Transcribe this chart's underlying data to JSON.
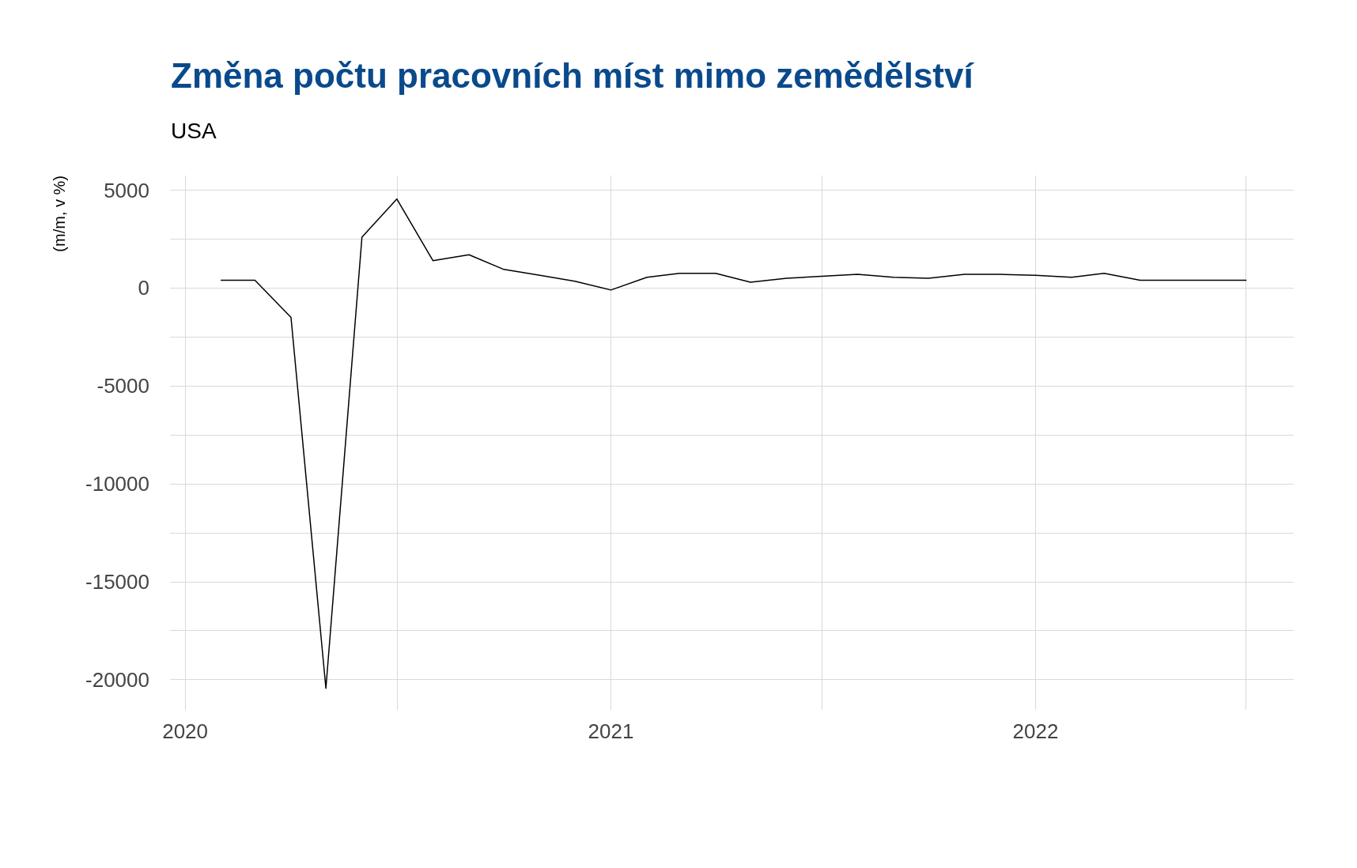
{
  "chart_data": {
    "type": "line",
    "title": "Změna počtu pracovních míst mimo zemědělství",
    "subtitle": "USA",
    "ylabel": "(m/m, v %)",
    "x": [
      "2020-02",
      "2020-03",
      "2020-04",
      "2020-05",
      "2020-06",
      "2020-07",
      "2020-08",
      "2020-09",
      "2020-10",
      "2020-11",
      "2020-12",
      "2021-01",
      "2021-02",
      "2021-03",
      "2021-04",
      "2021-05",
      "2021-06",
      "2021-07",
      "2021-08",
      "2021-09",
      "2021-10",
      "2021-11",
      "2021-12",
      "2022-01",
      "2022-02",
      "2022-03",
      "2022-04",
      "2022-05",
      "2022-06",
      "2022-07"
    ],
    "series": [
      {
        "color": "#000000",
        "values": [
          400,
          400,
          -1500,
          -20450,
          2600,
          4550,
          1400,
          1700,
          950,
          650,
          350,
          -100,
          550,
          750,
          750,
          300,
          500,
          600,
          700,
          550,
          500,
          700,
          700,
          650,
          550,
          750,
          400,
          400,
          400,
          400
        ]
      }
    ],
    "xlim": [
      "2019-12-19",
      "2022-08-11"
    ],
    "xticks": [
      {
        "value": "2020-01-01",
        "label": "2020"
      },
      {
        "value": "2020-07-01",
        "label": null
      },
      {
        "value": "2021-01-01",
        "label": "2021"
      },
      {
        "value": "2021-07-01",
        "label": null
      },
      {
        "value": "2022-01-01",
        "label": "2022"
      },
      {
        "value": "2022-07-01",
        "label": null
      }
    ],
    "ylim": [
      -21550,
      5750
    ],
    "yticks": [
      -20000,
      {
        "value": -17500,
        "label": null
      },
      -15000,
      {
        "value": -12500,
        "label": null
      },
      -10000,
      {
        "value": -7500,
        "label": null
      },
      -5000,
      {
        "value": -2500,
        "label": null
      },
      0,
      {
        "value": 2500,
        "label": null
      },
      5000
    ],
    "grid": true,
    "marker": "none",
    "line_style": "solid"
  }
}
